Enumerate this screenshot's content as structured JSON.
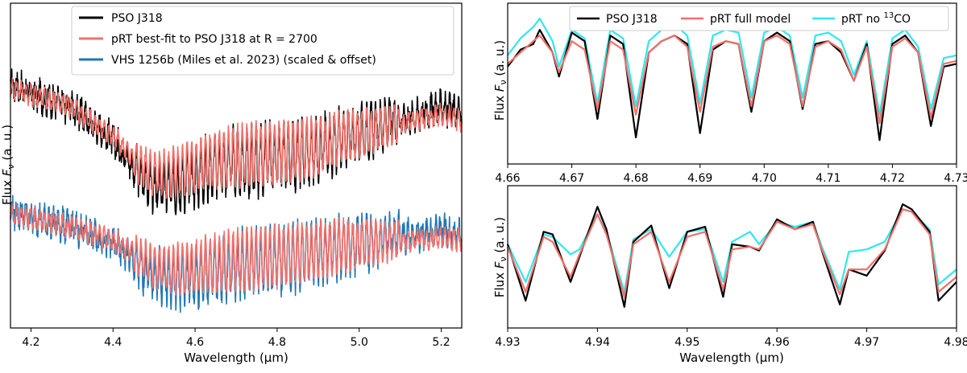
{
  "chart_data": [
    {
      "type": "line",
      "panel": "left",
      "xlabel": "Wavelength (µm)",
      "ylabel": "Flux F_ν (a. u.)",
      "ylabel_parts": {
        "pre": "Flux ",
        "var": "F",
        "sub": "ν",
        "post": " (a. u.)"
      },
      "xlim": [
        4.15,
        5.25
      ],
      "ylim": [
        0,
        1
      ],
      "x_ticks": [
        "4.2",
        "4.4",
        "4.6",
        "4.8",
        "5.0",
        "5.2"
      ],
      "x_tick_values": [
        4.2,
        4.4,
        4.6,
        4.8,
        5.0,
        5.2
      ],
      "legend_position": "top-left",
      "grid": false,
      "series": [
        {
          "name": "PSO J318",
          "color": "#000000",
          "x": [
            4.15,
            4.2,
            4.3,
            4.4,
            4.45,
            4.5,
            4.55,
            4.6,
            4.65,
            4.7,
            4.8,
            4.9,
            5.0,
            5.1,
            5.2,
            5.25
          ],
          "values": [
            0.75,
            0.72,
            0.68,
            0.58,
            0.5,
            0.43,
            0.44,
            0.47,
            0.5,
            0.51,
            0.52,
            0.55,
            0.6,
            0.64,
            0.68,
            0.66
          ]
        },
        {
          "name": "pRT best-fit to PSO J318 at R = 2700",
          "color": "#f2706a",
          "x": [
            4.15,
            4.2,
            4.3,
            4.4,
            4.45,
            4.5,
            4.55,
            4.6,
            4.65,
            4.7,
            4.8,
            4.9,
            5.0,
            5.1,
            5.2,
            5.25
          ],
          "values": [
            0.74,
            0.72,
            0.68,
            0.59,
            0.52,
            0.47,
            0.48,
            0.5,
            0.52,
            0.53,
            0.54,
            0.56,
            0.6,
            0.63,
            0.66,
            0.64
          ]
        },
        {
          "name": "VHS 1256b (Miles et al. 2023) (scaled & offset)",
          "color": "#1f77b4",
          "x": [
            4.15,
            4.2,
            4.3,
            4.4,
            4.45,
            4.5,
            4.55,
            4.6,
            4.65,
            4.7,
            4.8,
            4.9,
            5.0,
            5.1,
            5.2,
            5.25
          ],
          "values": [
            0.36,
            0.34,
            0.31,
            0.26,
            0.21,
            0.16,
            0.15,
            0.16,
            0.18,
            0.19,
            0.21,
            0.23,
            0.26,
            0.28,
            0.3,
            0.29
          ]
        },
        {
          "name": "",
          "color": "#f2706a",
          "x": [
            4.15,
            4.2,
            4.3,
            4.4,
            4.45,
            4.5,
            4.55,
            4.6,
            4.65,
            4.7,
            4.8,
            4.9,
            5.0,
            5.1,
            5.2,
            5.25
          ],
          "values": [
            0.35,
            0.34,
            0.31,
            0.27,
            0.23,
            0.19,
            0.18,
            0.19,
            0.2,
            0.21,
            0.22,
            0.24,
            0.26,
            0.27,
            0.28,
            0.27
          ]
        }
      ]
    },
    {
      "type": "line",
      "panel": "top-right",
      "xlabel": "",
      "ylabel": "Flux F_ν (a. u.)",
      "ylabel_parts": {
        "pre": "Flux ",
        "var": "F",
        "sub": "ν",
        "post": " (a. u.)"
      },
      "xlim": [
        4.66,
        4.73
      ],
      "ylim": [
        0,
        1
      ],
      "x_ticks": [
        "4.66",
        "4.67",
        "4.68",
        "4.69",
        "4.70",
        "4.71",
        "4.72",
        "4.73"
      ],
      "x_tick_values": [
        4.66,
        4.67,
        4.68,
        4.69,
        4.7,
        4.71,
        4.72,
        4.73
      ],
      "legend_position": "top",
      "grid": false,
      "legend": [
        {
          "name": "PSO J318",
          "color": "#000000"
        },
        {
          "name": "pRT full model",
          "color": "#f2706a"
        },
        {
          "name": "pRT no ",
          "sup": "13",
          "name_post": "CO",
          "color": "#2ee8ef"
        }
      ],
      "series": [
        {
          "name": "PSO J318",
          "color": "#000000",
          "x": [
            4.66,
            4.662,
            4.664,
            4.665,
            4.667,
            4.668,
            4.67,
            4.672,
            4.674,
            4.676,
            4.678,
            4.68,
            4.682,
            4.684,
            4.686,
            4.688,
            4.69,
            4.692,
            4.694,
            4.696,
            4.698,
            4.7,
            4.702,
            4.704,
            4.706,
            4.708,
            4.71,
            4.712,
            4.714,
            4.716,
            4.718,
            4.72,
            4.722,
            4.724,
            4.726,
            4.728,
            4.73
          ],
          "values": [
            0.62,
            0.74,
            0.78,
            0.88,
            0.72,
            0.55,
            0.86,
            0.8,
            0.25,
            0.84,
            0.78,
            0.12,
            0.72,
            0.8,
            0.84,
            0.78,
            0.15,
            0.74,
            0.8,
            0.78,
            0.3,
            0.8,
            0.86,
            0.8,
            0.32,
            0.78,
            0.8,
            0.72,
            0.52,
            0.78,
            0.1,
            0.78,
            0.84,
            0.72,
            0.2,
            0.62,
            0.64
          ]
        },
        {
          "name": "pRT full model",
          "color": "#f2706a",
          "x": [
            4.66,
            4.662,
            4.664,
            4.665,
            4.667,
            4.668,
            4.67,
            4.672,
            4.674,
            4.676,
            4.678,
            4.68,
            4.682,
            4.684,
            4.686,
            4.688,
            4.69,
            4.692,
            4.694,
            4.696,
            4.698,
            4.7,
            4.702,
            4.704,
            4.706,
            4.708,
            4.71,
            4.712,
            4.714,
            4.716,
            4.718,
            4.72,
            4.722,
            4.724,
            4.726,
            4.728,
            4.73
          ],
          "values": [
            0.64,
            0.72,
            0.8,
            0.84,
            0.72,
            0.58,
            0.8,
            0.74,
            0.32,
            0.8,
            0.74,
            0.28,
            0.72,
            0.8,
            0.84,
            0.76,
            0.3,
            0.76,
            0.8,
            0.78,
            0.34,
            0.8,
            0.84,
            0.78,
            0.34,
            0.76,
            0.8,
            0.74,
            0.52,
            0.76,
            0.22,
            0.76,
            0.82,
            0.72,
            0.26,
            0.64,
            0.66
          ]
        },
        {
          "name": "pRT no 13CO",
          "color": "#2ee8ef",
          "x": [
            4.66,
            4.662,
            4.664,
            4.665,
            4.667,
            4.668,
            4.67,
            4.672,
            4.674,
            4.676,
            4.678,
            4.68,
            4.682,
            4.684,
            4.686,
            4.688,
            4.69,
            4.692,
            4.694,
            4.696,
            4.698,
            4.7,
            4.702,
            4.704,
            4.706,
            4.708,
            4.71,
            4.712,
            4.714,
            4.716,
            4.718,
            4.72,
            4.722,
            4.724,
            4.726,
            4.728,
            4.73
          ],
          "values": [
            0.7,
            0.82,
            0.9,
            0.96,
            0.8,
            0.62,
            0.88,
            0.82,
            0.36,
            0.88,
            0.82,
            0.34,
            0.8,
            0.88,
            0.92,
            0.84,
            0.36,
            0.84,
            0.88,
            0.86,
            0.4,
            0.86,
            0.9,
            0.84,
            0.4,
            0.84,
            0.86,
            0.8,
            0.56,
            0.8,
            0.28,
            0.82,
            0.88,
            0.76,
            0.32,
            0.68,
            0.7
          ]
        }
      ]
    },
    {
      "type": "line",
      "panel": "bottom-right",
      "xlabel": "Wavelength (µm)",
      "ylabel": "Flux F_ν (a. u.)",
      "ylabel_parts": {
        "pre": "Flux ",
        "var": "F",
        "sub": "ν",
        "post": " (a. u.)"
      },
      "xlim": [
        4.93,
        4.98
      ],
      "ylim": [
        0,
        1
      ],
      "x_ticks": [
        "4.93",
        "4.94",
        "4.95",
        "4.96",
        "4.97",
        "4.98"
      ],
      "x_tick_values": [
        4.93,
        4.94,
        4.95,
        4.96,
        4.97,
        4.98
      ],
      "grid": false,
      "series": [
        {
          "name": "PSO J318",
          "color": "#000000",
          "x": [
            4.93,
            4.932,
            4.934,
            4.935,
            4.937,
            4.938,
            4.94,
            4.941,
            4.943,
            4.944,
            4.946,
            4.948,
            4.95,
            4.952,
            4.954,
            4.955,
            4.957,
            4.958,
            4.96,
            4.962,
            4.964,
            4.965,
            4.967,
            4.968,
            4.97,
            4.972,
            4.974,
            4.975,
            4.977,
            4.978,
            4.98
          ],
          "values": [
            0.6,
            0.15,
            0.7,
            0.68,
            0.3,
            0.5,
            0.9,
            0.72,
            0.1,
            0.62,
            0.75,
            0.25,
            0.7,
            0.74,
            0.18,
            0.6,
            0.58,
            0.55,
            0.8,
            0.72,
            0.78,
            0.55,
            0.12,
            0.4,
            0.35,
            0.55,
            0.92,
            0.88,
            0.7,
            0.15,
            0.3
          ]
        },
        {
          "name": "pRT full model",
          "color": "#f2706a",
          "x": [
            4.93,
            4.932,
            4.934,
            4.935,
            4.937,
            4.938,
            4.94,
            4.941,
            4.943,
            4.944,
            4.946,
            4.948,
            4.95,
            4.952,
            4.954,
            4.955,
            4.957,
            4.958,
            4.96,
            4.962,
            4.964,
            4.965,
            4.967,
            4.968,
            4.97,
            4.972,
            4.974,
            4.975,
            4.977,
            4.978,
            4.98
          ],
          "values": [
            0.58,
            0.22,
            0.66,
            0.62,
            0.34,
            0.52,
            0.84,
            0.68,
            0.18,
            0.6,
            0.7,
            0.3,
            0.66,
            0.7,
            0.24,
            0.56,
            0.58,
            0.56,
            0.78,
            0.72,
            0.76,
            0.56,
            0.2,
            0.4,
            0.4,
            0.56,
            0.88,
            0.86,
            0.68,
            0.22,
            0.34
          ]
        },
        {
          "name": "pRT no 13CO",
          "color": "#2ee8ef",
          "x": [
            4.93,
            4.932,
            4.934,
            4.935,
            4.937,
            4.938,
            4.94,
            4.941,
            4.943,
            4.944,
            4.946,
            4.948,
            4.95,
            4.952,
            4.954,
            4.955,
            4.957,
            4.958,
            4.96,
            4.962,
            4.964,
            4.965,
            4.967,
            4.968,
            4.97,
            4.972,
            4.974,
            4.975,
            4.977,
            4.978,
            4.98
          ],
          "values": [
            0.6,
            0.3,
            0.68,
            0.66,
            0.52,
            0.56,
            0.84,
            0.7,
            0.22,
            0.64,
            0.72,
            0.5,
            0.7,
            0.72,
            0.3,
            0.62,
            0.7,
            0.6,
            0.78,
            0.74,
            0.78,
            0.58,
            0.24,
            0.54,
            0.56,
            0.62,
            0.88,
            0.86,
            0.72,
            0.28,
            0.4
          ]
        }
      ]
    }
  ]
}
